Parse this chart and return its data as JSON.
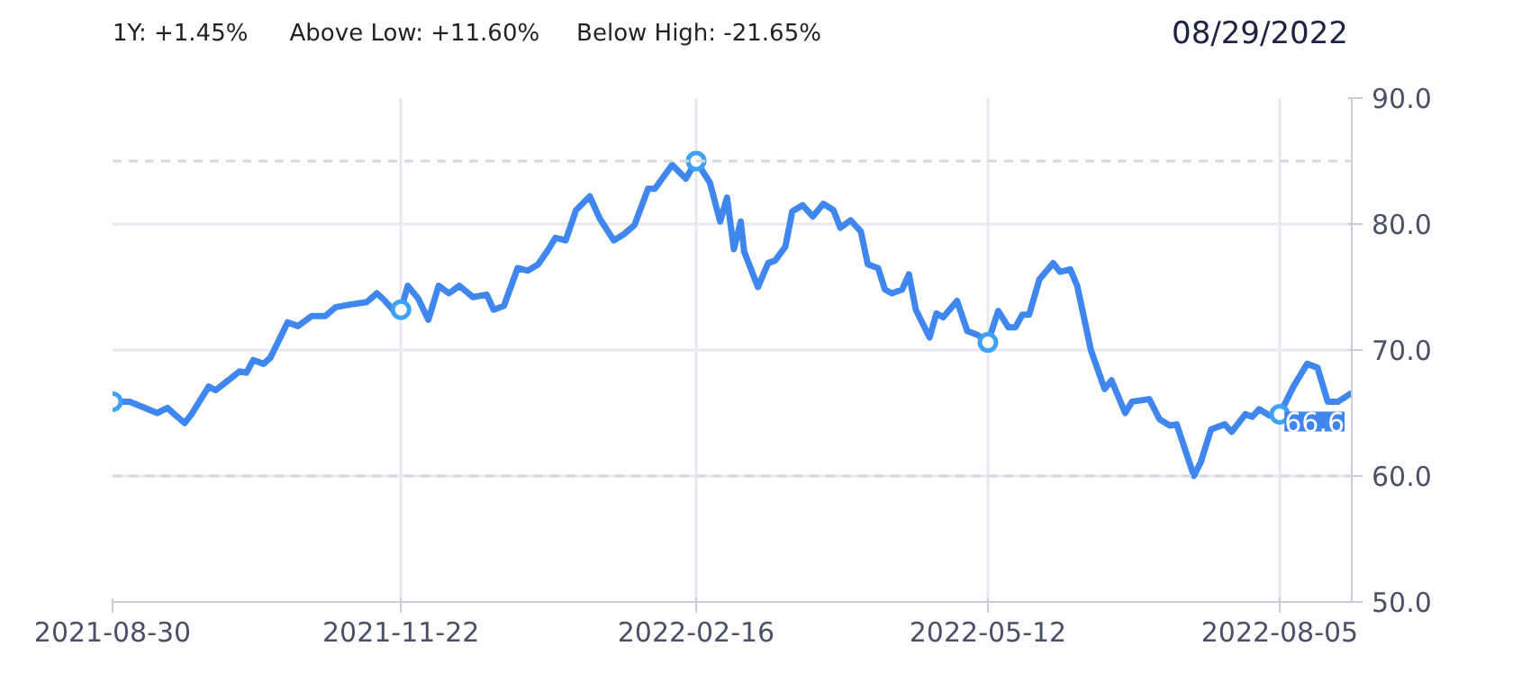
{
  "chart_data": {
    "type": "line",
    "title": "08/29/2022",
    "annotations": [
      "1Y: +1.45%",
      "Above Low: +11.60%",
      "Below High: -21.65%",
      {
        "text": "66.6",
        "x": "2022-08-26",
        "y": 66.6
      }
    ],
    "x": [
      "2021-08-30",
      "2021-09-04",
      "2021-09-12",
      "2021-09-15",
      "2021-09-17",
      "2021-09-20",
      "2021-09-22",
      "2021-09-27",
      "2021-09-29",
      "2021-10-06",
      "2021-10-08",
      "2021-10-10",
      "2021-10-13",
      "2021-10-15",
      "2021-10-20",
      "2021-10-23",
      "2021-10-27",
      "2021-10-31",
      "2021-11-03",
      "2021-11-07",
      "2021-11-12",
      "2021-11-15",
      "2021-11-17",
      "2021-11-20",
      "2021-11-22",
      "2021-11-24",
      "2021-11-27",
      "2021-11-30",
      "2021-12-03",
      "2021-12-06",
      "2021-12-09",
      "2021-12-13",
      "2021-12-17",
      "2021-12-19",
      "2021-12-22",
      "2021-12-26",
      "2021-12-29",
      "2022-01-01",
      "2022-01-04",
      "2022-01-06",
      "2022-01-09",
      "2022-01-12",
      "2022-01-16",
      "2022-01-19",
      "2022-01-23",
      "2022-01-26",
      "2022-01-29",
      "2022-02-02",
      "2022-02-04",
      "2022-02-09",
      "2022-02-13",
      "2022-02-16",
      "2022-02-20",
      "2022-02-23",
      "2022-02-25",
      "2022-02-27",
      "2022-03-01",
      "2022-03-02",
      "2022-03-06",
      "2022-03-09",
      "2022-03-11",
      "2022-03-14",
      "2022-03-16",
      "2022-03-19",
      "2022-03-22",
      "2022-03-25",
      "2022-03-28",
      "2022-03-30",
      "2022-04-02",
      "2022-04-05",
      "2022-04-07",
      "2022-04-10",
      "2022-04-12",
      "2022-04-14",
      "2022-04-17",
      "2022-04-19",
      "2022-04-21",
      "2022-04-25",
      "2022-04-27",
      "2022-04-29",
      "2022-05-03",
      "2022-05-06",
      "2022-05-09",
      "2022-05-12",
      "2022-05-15",
      "2022-05-18",
      "2022-05-20",
      "2022-05-22",
      "2022-05-24",
      "2022-05-27",
      "2022-05-31",
      "2022-06-02",
      "2022-06-05",
      "2022-06-07",
      "2022-06-11",
      "2022-06-15",
      "2022-06-17",
      "2022-06-21",
      "2022-06-23",
      "2022-06-28",
      "2022-07-01",
      "2022-07-04",
      "2022-07-06",
      "2022-07-11",
      "2022-07-13",
      "2022-07-16",
      "2022-07-20",
      "2022-07-22",
      "2022-07-26",
      "2022-07-28",
      "2022-07-30",
      "2022-08-02",
      "2022-08-05",
      "2022-08-09",
      "2022-08-13",
      "2022-08-16",
      "2022-08-19",
      "2022-08-22",
      "2022-08-26"
    ],
    "series": [
      {
        "color": "#3f86ee",
        "values": [
          65.9,
          65.9,
          65.0,
          65.4,
          64.9,
          64.2,
          64.9,
          67.1,
          66.8,
          68.3,
          68.2,
          69.2,
          68.9,
          69.4,
          72.2,
          71.9,
          72.7,
          72.7,
          73.4,
          73.6,
          73.8,
          74.5,
          74.0,
          73.1,
          73.2,
          75.1,
          74.1,
          72.4,
          75.1,
          74.5,
          75.1,
          74.2,
          74.4,
          73.2,
          73.5,
          76.5,
          76.3,
          76.8,
          78.0,
          78.9,
          78.7,
          81.1,
          82.2,
          80.4,
          78.7,
          79.2,
          79.9,
          82.8,
          82.8,
          84.7,
          83.6,
          85.0,
          83.3,
          80.2,
          82.1,
          78.0,
          80.2,
          77.8,
          75.0,
          76.9,
          77.1,
          78.2,
          81.0,
          81.5,
          80.6,
          81.6,
          81.1,
          79.7,
          80.3,
          79.4,
          76.8,
          76.5,
          74.8,
          74.5,
          74.8,
          76.0,
          73.2,
          71.0,
          72.9,
          72.6,
          73.9,
          71.5,
          71.2,
          70.6,
          73.1,
          71.8,
          71.8,
          72.8,
          72.8,
          75.6,
          76.9,
          76.2,
          76.4,
          75.1,
          70.0,
          66.9,
          67.6,
          65.0,
          65.9,
          66.1,
          64.5,
          64.0,
          64.1,
          60.0,
          61.1,
          63.7,
          64.1,
          63.5,
          64.9,
          64.7,
          65.3,
          64.8,
          64.9,
          67.1,
          68.9,
          68.6,
          65.9,
          65.9,
          66.6
        ]
      },
      {
        "type": "scatter",
        "color": "#3fa2f7",
        "marker": "circle",
        "x": [
          "2021-08-30",
          "2021-11-22",
          "2022-02-16",
          "2022-05-12",
          "2022-08-05"
        ],
        "values": [
          65.9,
          73.2,
          85.0,
          70.6,
          64.9
        ]
      }
    ],
    "xlim": [
      "2021-08-30",
      "2022-08-26"
    ],
    "xticks": [
      "2021-08-30",
      "2021-11-22",
      "2022-02-16",
      "2022-05-12",
      "2022-08-05"
    ],
    "ylim": [
      50,
      90
    ],
    "yticks": [
      {
        "value": 50,
        "label": "50.0"
      },
      {
        "value": 60,
        "label": "60.0"
      },
      {
        "value": 70,
        "label": "70.0"
      },
      {
        "value": 80,
        "label": "80.0"
      },
      {
        "value": 90,
        "label": "90.0"
      }
    ],
    "ref_lines": [
      {
        "axis": "y",
        "value": 85.0,
        "color": "#d5d9e0",
        "line_style": "dashed"
      },
      {
        "axis": "y",
        "value": 60.0,
        "color": "#d5d9e0",
        "line_style": "dashed"
      }
    ],
    "grid": true
  }
}
